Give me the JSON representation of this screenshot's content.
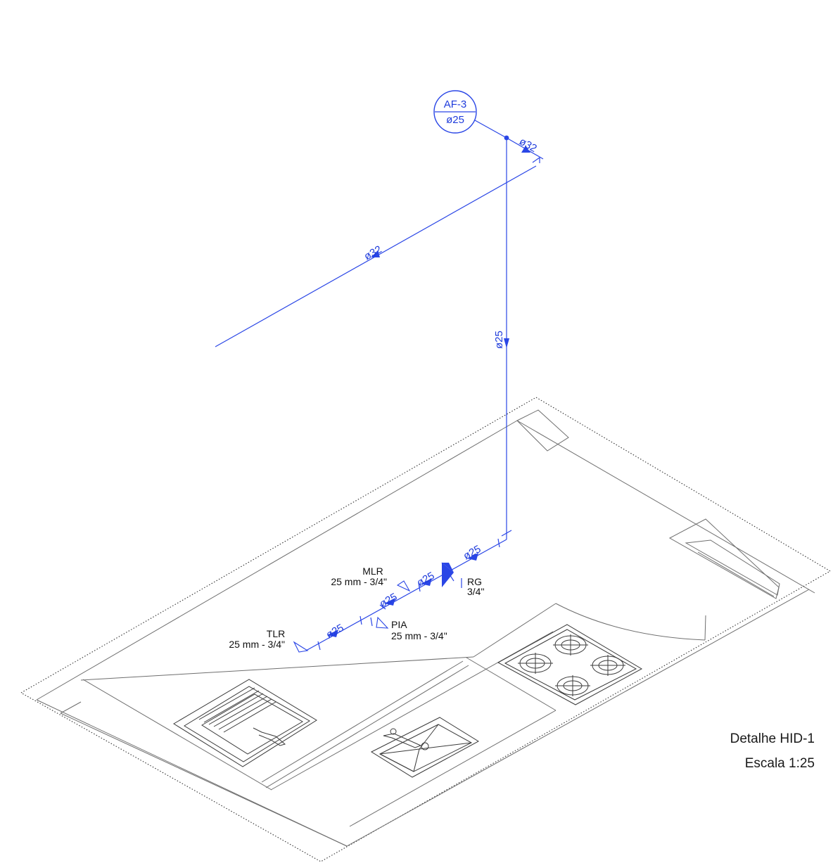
{
  "colors": {
    "pipe": "#2a46e6",
    "plan": "#6e6e6e",
    "text": "#111111"
  },
  "riser_tag": {
    "id": "AF-3",
    "diameter": "ø25"
  },
  "pipes": {
    "upper_short": "ø32",
    "long_branch": "ø32",
    "vertical": "ø25",
    "horizontal_1": "ø25",
    "horizontal_2": "ø25",
    "horizontal_3": "ø25",
    "horizontal_4": "ø25"
  },
  "fixtures": {
    "mlr": {
      "name": "MLR",
      "spec": "25 mm - 3/4\""
    },
    "tlr": {
      "name": "TLR",
      "spec": "25 mm - 3/4\""
    },
    "pia": {
      "name": "PIA",
      "spec": "25 mm - 3/4\""
    },
    "rg": {
      "name": "RG",
      "spec": "3/4\""
    }
  },
  "caption": {
    "title": "Detalhe HID-1",
    "scale": "Escala 1:25"
  }
}
